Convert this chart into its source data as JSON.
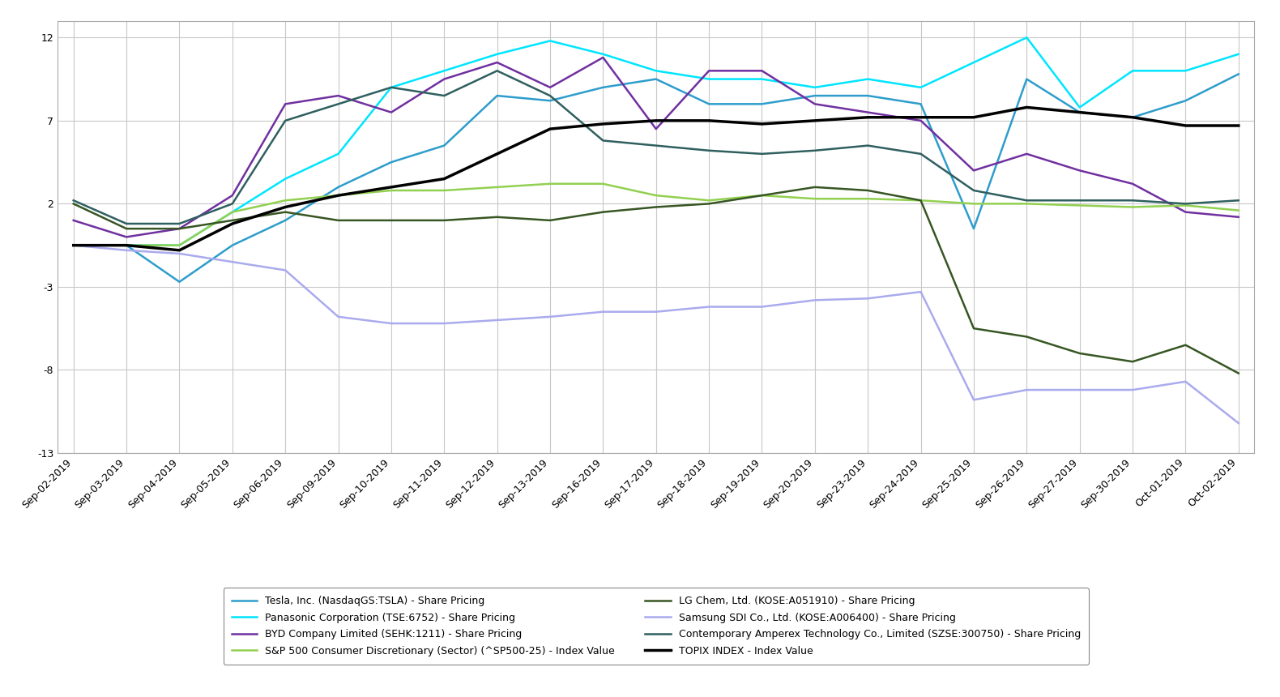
{
  "x_labels": [
    "Sep-02-2019",
    "Sep-03-2019",
    "Sep-04-2019",
    "Sep-05-2019",
    "Sep-06-2019",
    "Sep-09-2019",
    "Sep-10-2019",
    "Sep-11-2019",
    "Sep-12-2019",
    "Sep-13-2019",
    "Sep-16-2019",
    "Sep-17-2019",
    "Sep-18-2019",
    "Sep-19-2019",
    "Sep-20-2019",
    "Sep-23-2019",
    "Sep-24-2019",
    "Sep-25-2019",
    "Sep-26-2019",
    "Sep-27-2019",
    "Sep-30-2019",
    "Oct-01-2019",
    "Oct-02-2019"
  ],
  "series": [
    {
      "label": "Tesla, Inc. (NasdaqGS:TSLA) - Share Pricing",
      "color": "#2E9DCC",
      "linewidth": 1.8,
      "data": [
        -0.5,
        -0.5,
        -2.7,
        -0.5,
        1.0,
        3.0,
        4.5,
        5.5,
        8.5,
        8.2,
        9.0,
        9.5,
        8.0,
        8.0,
        8.5,
        8.5,
        8.0,
        0.5,
        9.5,
        7.5,
        7.2,
        8.2,
        9.8
      ]
    },
    {
      "label": "Panasonic Corporation (TSE:6752) - Share Pricing",
      "color": "#00E5FF",
      "linewidth": 1.8,
      "data": [
        -0.5,
        -0.5,
        -0.5,
        1.5,
        3.5,
        5.0,
        9.0,
        10.0,
        11.0,
        11.8,
        11.0,
        10.0,
        9.5,
        9.5,
        9.0,
        9.5,
        9.0,
        10.5,
        12.0,
        7.8,
        10.0,
        10.0,
        11.0
      ]
    },
    {
      "label": "BYD Company Limited (SEHK:1211) - Share Pricing",
      "color": "#7030A0",
      "linewidth": 1.8,
      "data": [
        1.0,
        0.0,
        0.5,
        2.5,
        8.0,
        8.5,
        7.5,
        9.5,
        10.5,
        9.0,
        10.8,
        6.5,
        10.0,
        10.0,
        8.0,
        7.5,
        7.0,
        4.0,
        5.0,
        4.0,
        3.2,
        1.5,
        1.2
      ]
    },
    {
      "label": "S&P 500 Consumer Discretionary (Sector) (^SP500-25) - Index Value",
      "color": "#92D050",
      "linewidth": 1.8,
      "data": [
        -0.5,
        -0.5,
        -0.5,
        1.5,
        2.2,
        2.5,
        2.8,
        2.8,
        3.0,
        3.2,
        3.2,
        2.5,
        2.2,
        2.5,
        2.3,
        2.3,
        2.2,
        2.0,
        2.0,
        1.9,
        1.8,
        1.9,
        1.6
      ]
    },
    {
      "label": "LG Chem, Ltd. (KOSE:A051910) - Share Pricing",
      "color": "#375623",
      "linewidth": 1.8,
      "data": [
        2.0,
        0.5,
        0.5,
        1.0,
        1.5,
        1.0,
        1.0,
        1.0,
        1.2,
        1.0,
        1.5,
        1.8,
        2.0,
        2.5,
        3.0,
        2.8,
        2.2,
        -5.5,
        -6.0,
        -7.0,
        -7.5,
        -6.5,
        -8.2
      ]
    },
    {
      "label": "Samsung SDI Co., Ltd. (KOSE:A006400) - Share Pricing",
      "color": "#AAAAEE",
      "linewidth": 1.8,
      "data": [
        -0.5,
        -0.8,
        -1.0,
        -1.5,
        -2.0,
        -4.8,
        -5.2,
        -5.2,
        -5.0,
        -4.8,
        -4.5,
        -4.5,
        -4.2,
        -4.2,
        -3.8,
        -3.7,
        -3.3,
        -9.8,
        -9.2,
        -9.2,
        -9.2,
        -8.7,
        -11.2
      ]
    },
    {
      "label": "Contemporary Amperex Technology Co., Limited (SZSE:300750) - Share Pricing",
      "color": "#2F5F5F",
      "linewidth": 1.8,
      "data": [
        2.2,
        0.8,
        0.8,
        2.0,
        7.0,
        8.0,
        9.0,
        8.5,
        10.0,
        8.5,
        5.8,
        5.5,
        5.2,
        5.0,
        5.2,
        5.5,
        5.0,
        2.8,
        2.2,
        2.2,
        2.2,
        2.0,
        2.2
      ]
    },
    {
      "label": "TOPIX INDEX - Index Value",
      "color": "#000000",
      "linewidth": 2.5,
      "data": [
        -0.5,
        -0.5,
        -0.8,
        0.8,
        1.8,
        2.5,
        3.0,
        3.5,
        5.0,
        6.5,
        6.8,
        7.0,
        7.0,
        6.8,
        7.0,
        7.2,
        7.2,
        7.2,
        7.8,
        7.5,
        7.2,
        6.7,
        6.7
      ]
    }
  ],
  "ylim": [
    -13,
    13
  ],
  "yticks": [
    -13,
    -8,
    -3,
    2,
    7,
    12
  ],
  "background_color": "#FFFFFF",
  "plot_bg_color": "#FFFFFF",
  "grid_color": "#C8C8C8",
  "tick_fontsize": 9,
  "legend_fontsize": 9,
  "legend_title_fontsize": 9
}
